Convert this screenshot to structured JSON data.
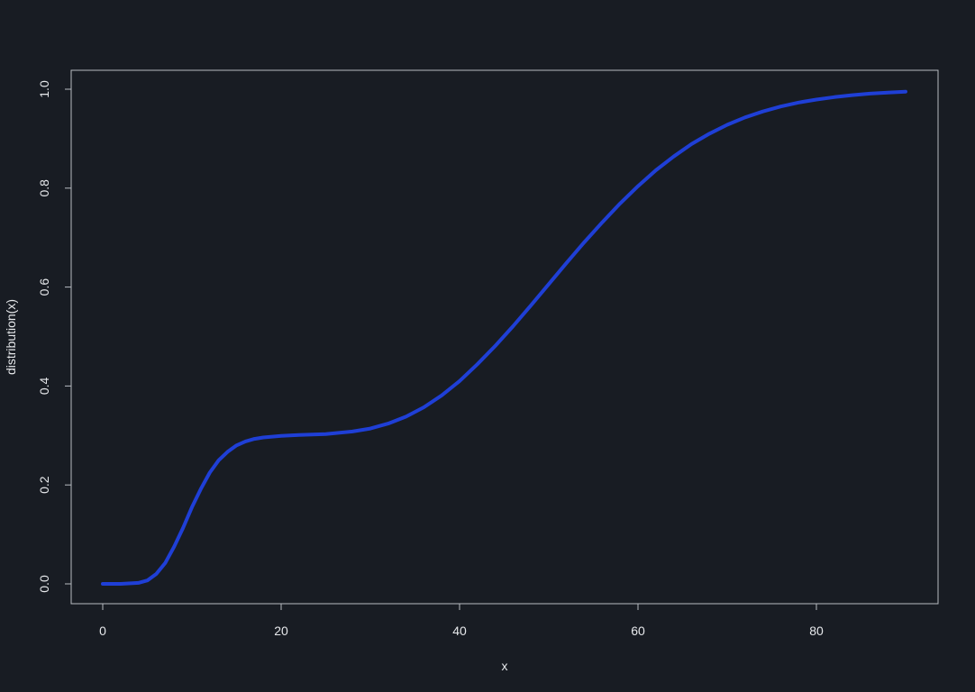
{
  "chart_data": {
    "type": "line",
    "title": "",
    "xlabel": "x",
    "ylabel": "distribution(x)",
    "xlim": [
      0,
      90
    ],
    "ylim": [
      0,
      1.0
    ],
    "x_ticks": [
      "0",
      "20",
      "40",
      "60",
      "80"
    ],
    "y_ticks": [
      "0.0",
      "0.2",
      "0.4",
      "0.6",
      "0.8",
      "1.0"
    ],
    "grid": false,
    "legend": "none",
    "series": [
      {
        "color": "#1f3fd6",
        "x": [
          0,
          2,
          4,
          5,
          6,
          7,
          8,
          9,
          10,
          11,
          12,
          13,
          14,
          15,
          16,
          17,
          18,
          20,
          22,
          25,
          28,
          30,
          32,
          34,
          36,
          38,
          40,
          42,
          44,
          46,
          48,
          50,
          52,
          54,
          56,
          58,
          60,
          62,
          64,
          66,
          68,
          70,
          72,
          74,
          76,
          78,
          80,
          82,
          84,
          86,
          88,
          90
        ],
        "values": [
          0.0,
          0.0,
          0.002,
          0.007,
          0.02,
          0.042,
          0.075,
          0.113,
          0.155,
          0.192,
          0.225,
          0.25,
          0.267,
          0.28,
          0.288,
          0.293,
          0.296,
          0.299,
          0.301,
          0.303,
          0.308,
          0.314,
          0.324,
          0.338,
          0.357,
          0.381,
          0.41,
          0.444,
          0.481,
          0.521,
          0.563,
          0.606,
          0.649,
          0.691,
          0.731,
          0.769,
          0.804,
          0.836,
          0.864,
          0.889,
          0.91,
          0.928,
          0.943,
          0.955,
          0.965,
          0.973,
          0.979,
          0.984,
          0.988,
          0.991,
          0.993,
          0.995
        ]
      }
    ]
  }
}
